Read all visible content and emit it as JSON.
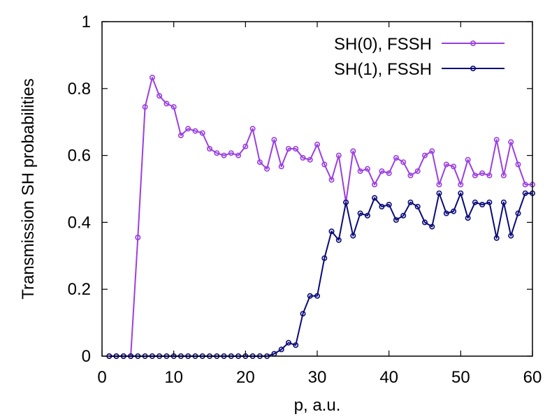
{
  "chart_data": {
    "type": "line",
    "title": "",
    "xlabel": "p, a.u.",
    "ylabel": "Transmission SH probabilities",
    "xlim": [
      0,
      60
    ],
    "ylim": [
      0,
      1
    ],
    "x_ticks": [
      0,
      10,
      20,
      30,
      40,
      50,
      60
    ],
    "y_ticks": [
      0,
      0.2,
      0.4,
      0.6,
      0.8,
      1
    ],
    "x_tick_labels": [
      "0",
      "10",
      "20",
      "30",
      "40",
      "50",
      "60"
    ],
    "y_tick_labels": [
      "0",
      "0.2",
      "0.4",
      "0.6",
      "0.8",
      "1"
    ],
    "grid": false,
    "legend_position": "top-right",
    "x": [
      1,
      2,
      3,
      4,
      5,
      6,
      7,
      8,
      9,
      10,
      11,
      12,
      13,
      14,
      15,
      16,
      17,
      18,
      19,
      20,
      21,
      22,
      23,
      24,
      25,
      26,
      27,
      28,
      29,
      30,
      31,
      32,
      33,
      34,
      35,
      36,
      37,
      38,
      39,
      40,
      41,
      42,
      43,
      44,
      45,
      46,
      47,
      48,
      49,
      50,
      51,
      52,
      53,
      54,
      55,
      56,
      57,
      58,
      59,
      60
    ],
    "series": [
      {
        "name": "SH(0), FSSH",
        "color": "#9a3fe0",
        "values": [
          0,
          0,
          0,
          0,
          0.355,
          0.745,
          0.833,
          0.778,
          0.755,
          0.745,
          0.66,
          0.68,
          0.673,
          0.667,
          0.62,
          0.607,
          0.6,
          0.607,
          0.6,
          0.627,
          0.68,
          0.58,
          0.56,
          0.647,
          0.567,
          0.62,
          0.62,
          0.593,
          0.587,
          0.633,
          0.573,
          0.527,
          0.6,
          0.46,
          0.613,
          0.553,
          0.56,
          0.513,
          0.553,
          0.547,
          0.593,
          0.58,
          0.54,
          0.553,
          0.6,
          0.613,
          0.513,
          0.573,
          0.567,
          0.513,
          0.587,
          0.54,
          0.547,
          0.54,
          0.647,
          0.54,
          0.64,
          0.573,
          0.513,
          0.513
        ]
      },
      {
        "name": "SH(1), FSSH",
        "color": "#0a0a78",
        "values": [
          0,
          0,
          0,
          0,
          0,
          0,
          0,
          0,
          0,
          0,
          0,
          0,
          0,
          0,
          0,
          0,
          0,
          0,
          0,
          0,
          0,
          0,
          0,
          0.007,
          0.02,
          0.04,
          0.033,
          0.127,
          0.18,
          0.18,
          0.293,
          0.373,
          0.347,
          0.46,
          0.36,
          0.427,
          0.42,
          0.473,
          0.447,
          0.453,
          0.407,
          0.42,
          0.46,
          0.447,
          0.4,
          0.387,
          0.487,
          0.427,
          0.433,
          0.487,
          0.413,
          0.46,
          0.453,
          0.46,
          0.353,
          0.46,
          0.36,
          0.427,
          0.487,
          0.487
        ]
      }
    ]
  }
}
